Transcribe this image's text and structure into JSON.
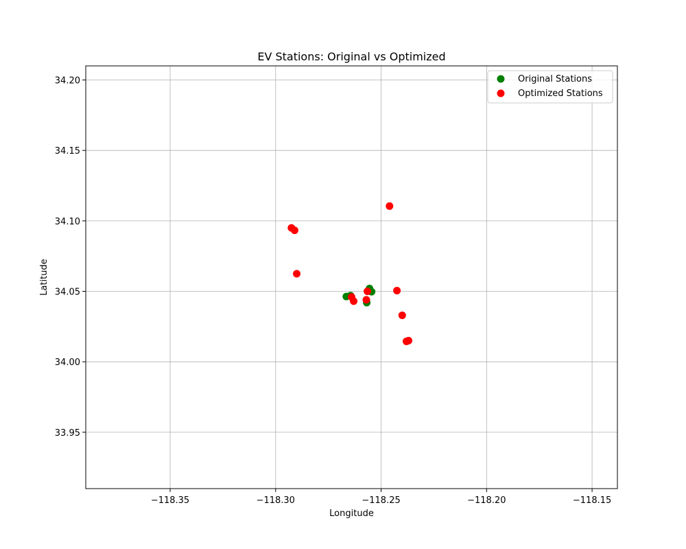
{
  "chart_data": {
    "type": "scatter",
    "title": "EV Stations: Original vs Optimized",
    "xlabel": "Longitude",
    "ylabel": "Latitude",
    "xlim": [
      -118.39,
      -118.138
    ],
    "ylim": [
      33.91,
      34.21
    ],
    "xticks": [
      -118.35,
      -118.3,
      -118.25,
      -118.2,
      -118.15
    ],
    "xtick_labels": [
      "−118.35",
      "−118.30",
      "−118.25",
      "−118.20",
      "−118.15"
    ],
    "yticks": [
      33.95,
      34.0,
      34.05,
      34.1,
      34.15,
      34.2
    ],
    "ytick_labels": [
      "33.95",
      "34.00",
      "34.05",
      "34.10",
      "34.15",
      "34.20"
    ],
    "grid": true,
    "legend_position": "top-right",
    "series": [
      {
        "name": "Original Stations",
        "color": "#008000",
        "points": [
          [
            -118.2665,
            34.0463
          ],
          [
            -118.2645,
            34.047
          ],
          [
            -118.2555,
            34.052
          ],
          [
            -118.2545,
            34.0497
          ],
          [
            -118.2568,
            34.042
          ]
        ]
      },
      {
        "name": "Optimized Stations",
        "color": "#ff0000",
        "points": [
          [
            -118.246,
            34.1105
          ],
          [
            -118.2925,
            34.095
          ],
          [
            -118.291,
            34.0933
          ],
          [
            -118.29,
            34.0625
          ],
          [
            -118.264,
            34.046
          ],
          [
            -118.263,
            34.043
          ],
          [
            -118.257,
            34.044
          ],
          [
            -118.2565,
            34.05
          ],
          [
            -118.2425,
            34.0505
          ],
          [
            -118.24,
            34.033
          ],
          [
            -118.238,
            34.0145
          ],
          [
            -118.237,
            34.015
          ]
        ]
      }
    ]
  }
}
